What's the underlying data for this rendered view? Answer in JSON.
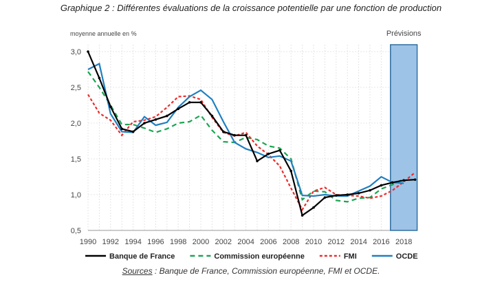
{
  "title": "Graphique 2 : Différentes évaluations de la croissance potentielle par une fonction de production",
  "source_label": "Sources",
  "source_text": " : Banque de France, Commission européenne, FMI et OCDE.",
  "chart_data": {
    "type": "line",
    "ylabel": "moyenne annuelle en %",
    "ylim": [
      0.5,
      3.0
    ],
    "yticks": [
      "0,5",
      "1,0",
      "1,5",
      "2,0",
      "2,5",
      "3,0"
    ],
    "xticks": [
      "1990",
      "1992",
      "1994",
      "1996",
      "1998",
      "2000",
      "2002",
      "2004",
      "2006",
      "2008",
      "2010",
      "2012",
      "2014",
      "2016",
      "2018"
    ],
    "grid": true,
    "legend": "bottom",
    "annotation": "Prévisions",
    "forecast_range": [
      2017,
      2019
    ],
    "forecast_color": "#9dc3e6",
    "series": [
      {
        "name": "Banque de France",
        "color": "#000000",
        "style": "solid-markers",
        "x_start": 1990,
        "values": [
          3.0,
          2.63,
          2.23,
          1.92,
          1.88,
          2.0,
          2.05,
          2.1,
          2.2,
          2.29,
          2.29,
          2.1,
          1.88,
          1.83,
          1.83,
          1.47,
          1.57,
          1.62,
          1.33,
          0.71,
          0.82,
          0.96,
          0.99,
          1.0,
          1.02,
          1.06,
          1.13,
          1.17,
          1.2,
          1.21
        ]
      },
      {
        "name": "Commission européenne",
        "color": "#1aa552",
        "style": "dashed",
        "x_start": 1990,
        "values": [
          2.72,
          2.5,
          2.25,
          1.98,
          1.98,
          1.93,
          1.87,
          1.92,
          2.0,
          2.02,
          2.11,
          1.9,
          1.74,
          1.73,
          1.8,
          1.77,
          1.68,
          1.65,
          1.5,
          0.93,
          1.05,
          1.04,
          0.92,
          0.9,
          0.95,
          0.96,
          1.08,
          1.14,
          1.22
        ]
      },
      {
        "name": "FMI",
        "color": "#ee2a2a",
        "style": "dotted",
        "x_start": 1990,
        "values": [
          2.4,
          2.14,
          2.04,
          1.83,
          2.02,
          2.04,
          2.09,
          2.22,
          2.37,
          2.38,
          2.33,
          2.08,
          1.87,
          1.82,
          1.87,
          1.68,
          1.56,
          1.4,
          1.09,
          0.79,
          1.05,
          1.1,
          1.0,
          0.99,
          0.98,
          0.95,
          0.98,
          1.06,
          1.18,
          1.31
        ]
      },
      {
        "name": "OCDE",
        "color": "#1f7fc0",
        "style": "solid",
        "x_start": 1990,
        "values": [
          2.75,
          2.83,
          2.13,
          1.88,
          1.87,
          2.09,
          1.97,
          2.01,
          2.22,
          2.37,
          2.46,
          2.33,
          2.02,
          1.73,
          1.64,
          1.59,
          1.52,
          1.54,
          1.47,
          0.99,
          0.98,
          1.0,
          0.98,
          0.98,
          1.05,
          1.12,
          1.25,
          1.17,
          1.16
        ]
      }
    ]
  }
}
